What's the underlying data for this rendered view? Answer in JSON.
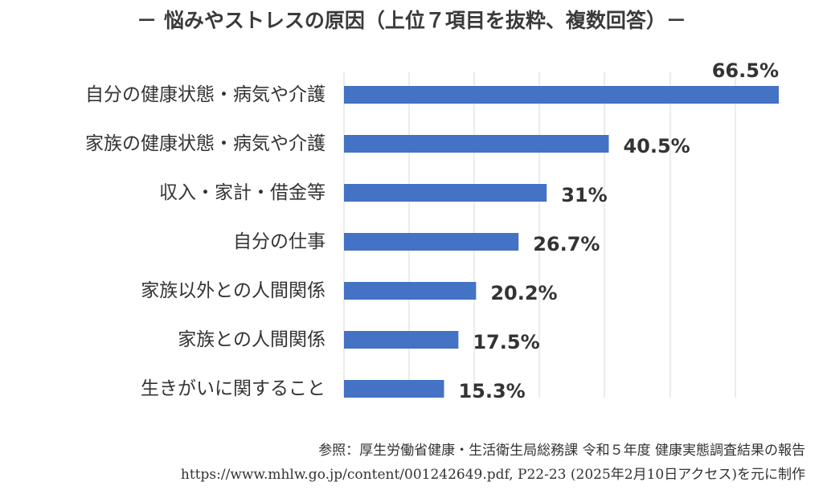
{
  "chart_data": {
    "type": "bar",
    "orientation": "horizontal",
    "title": "－ 悩みやストレスの原因（上位７項目を抜粋、複数回答）－",
    "categories": [
      "自分の健康状態・病気や介護",
      "家族の健康状態・病気や介護",
      "収入・家計・借金等",
      "自分の仕事",
      "家族以外との人間関係",
      "家族との人間関係",
      "生きがいに関すること"
    ],
    "values": [
      66.5,
      40.5,
      31,
      26.7,
      20.2,
      17.5,
      15.3
    ],
    "value_labels": [
      "66.5%",
      "40.5%",
      "31%",
      "26.7%",
      "20.2%",
      "17.5%",
      "15.3%"
    ],
    "xlim": [
      0,
      66.5
    ],
    "grid": "vertical",
    "legend": "none",
    "bar_color": "#4472c4"
  },
  "source": {
    "line1": "参照：厚生労働省健康・生活衛生局総務課 令和５年度 健康実態調査結果の報告",
    "line2": "https://www.mhlw.go.jp/content/001242649.pdf, P22-23 (2025年2月10日アクセス)を元に制作"
  }
}
